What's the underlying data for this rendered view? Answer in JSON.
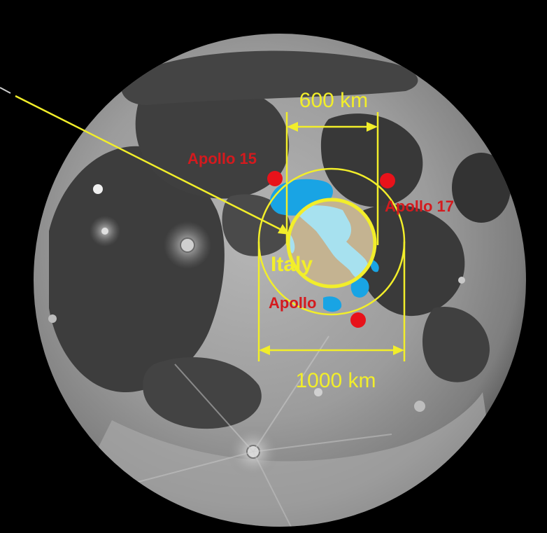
{
  "scene": {
    "subject": "Full Moon",
    "overlay_subject": "Italy"
  },
  "labels": {
    "apollo_15": "Apollo 15",
    "apollo_17": "Apollo 17",
    "apollo_11": "Apollo",
    "italy": "Italy",
    "dim_small": "600 km",
    "dim_large": "1000 km"
  },
  "colors": {
    "background": "#000000",
    "annotation_yellow": "#f2ee2a",
    "landing_site_red": "#e8121a",
    "label_red": "#d41a1e",
    "italy_fill": "#a7e1ef",
    "italy_land_fill": "#c4b391",
    "mare_overlay_blue": "#19a4e4",
    "moon_highlands": "#a3a3a3",
    "moon_maria": "#3b3b3b"
  },
  "icons": {
    "landing_site": "red-dot-icon",
    "pointer": "arrow-icon"
  }
}
